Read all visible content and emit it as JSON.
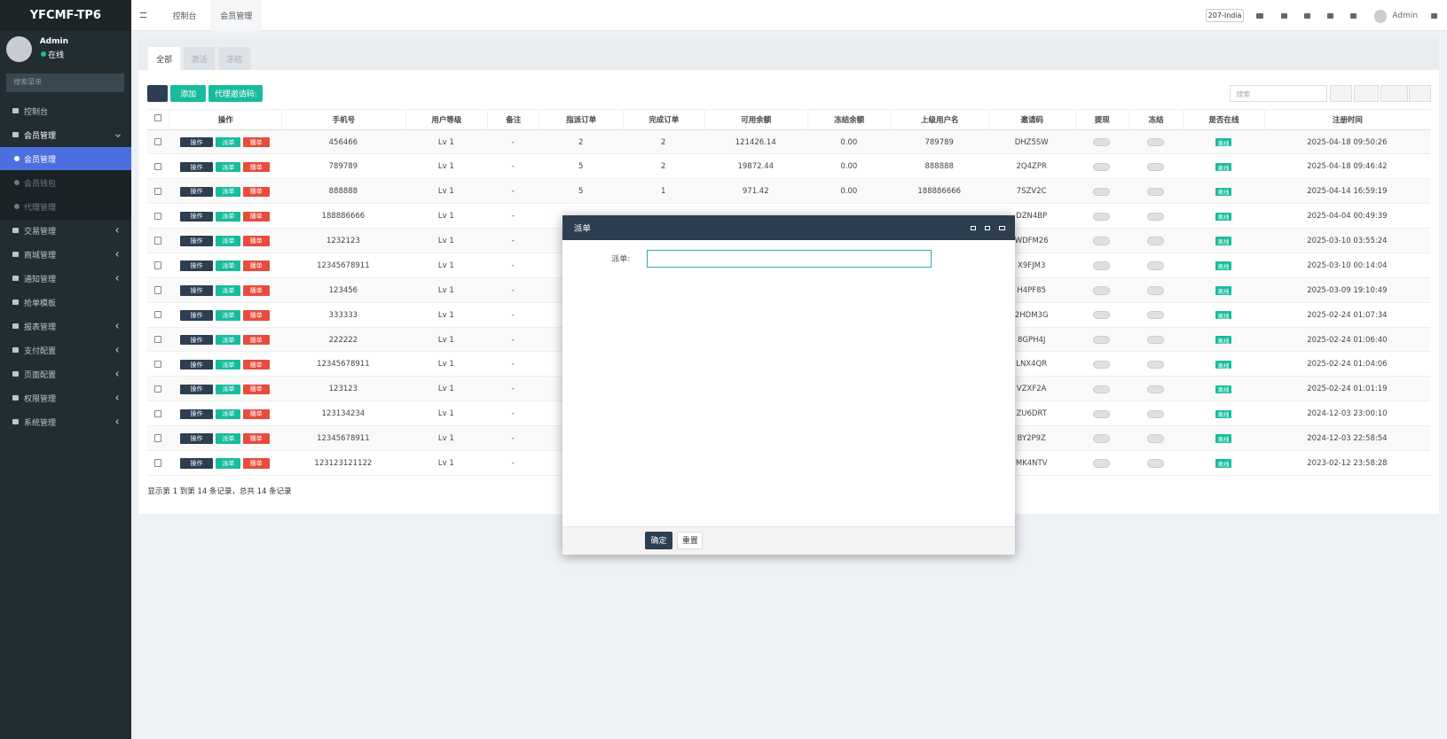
{
  "sidebar": {
    "logo": "YFCMF-TP6",
    "user": "Admin",
    "status": "在线",
    "search_placeholder": "搜索菜单",
    "menu": [
      {
        "label": "控制台"
      },
      {
        "label": "会员管理",
        "open": true,
        "children": [
          "会员管理",
          "会员钱包",
          "代理管理"
        ],
        "active_child": 0
      },
      {
        "label": "交易管理",
        "collapsible": true
      },
      {
        "label": "商城管理",
        "collapsible": true
      },
      {
        "label": "通知管理",
        "collapsible": true
      },
      {
        "label": "抢单模板"
      },
      {
        "label": "报表管理",
        "collapsible": true
      },
      {
        "label": "支付配置",
        "collapsible": true
      },
      {
        "label": "页面配置",
        "collapsible": true
      },
      {
        "label": "权限管理",
        "collapsible": true
      },
      {
        "label": "系统管理",
        "collapsible": true
      }
    ]
  },
  "topbar": {
    "tabs": [
      "控制台",
      "会员管理"
    ],
    "active_tab": 1,
    "lang": "207-India",
    "user": "Admin"
  },
  "panel": {
    "tabs": [
      "全部",
      "激活",
      "冻结"
    ],
    "add": "添加",
    "invite": "代理邀请码:",
    "search_placeholder": "搜索"
  },
  "table": {
    "headers": [
      "操作",
      "手机号",
      "用户等级",
      "备注",
      "指派订单",
      "完成订单",
      "可用余额",
      "冻结余额",
      "上级用户名",
      "邀请码",
      "提现",
      "冻结",
      "是否在线",
      "注册时间"
    ],
    "row_actions": [
      "操作",
      "派单",
      "播单"
    ],
    "rows": [
      [
        "456466",
        "Lv 1",
        "-",
        "2",
        "2",
        "121426.14",
        "0.00",
        "789789",
        "DHZ5SW",
        "离线",
        "2025-04-18 09:50:26"
      ],
      [
        "789789",
        "Lv 1",
        "-",
        "5",
        "2",
        "19872.44",
        "0.00",
        "888888",
        "2Q4ZPR",
        "离线",
        "2025-04-18 09:46:42"
      ],
      [
        "888888",
        "Lv 1",
        "-",
        "5",
        "1",
        "971.42",
        "0.00",
        "188886666",
        "7SZV2C",
        "离线",
        "2025-04-14 16:59:19"
      ],
      [
        "188886666",
        "Lv 1",
        "-",
        null,
        null,
        null,
        null,
        null,
        "DZN4BP",
        "离线",
        "2025-04-04 00:49:39"
      ],
      [
        "1232123",
        "Lv 1",
        "-",
        null,
        null,
        null,
        null,
        null,
        "WDFM26",
        "离线",
        "2025-03-10 03:55:24"
      ],
      [
        "12345678911",
        "Lv 1",
        "-",
        null,
        null,
        null,
        null,
        null,
        "X9FJM3",
        "离线",
        "2025-03-10 00:14:04"
      ],
      [
        "123456",
        "Lv 1",
        "-",
        null,
        null,
        null,
        null,
        null,
        "H4PF85",
        "离线",
        "2025-03-09 19:10:49"
      ],
      [
        "333333",
        "Lv 1",
        "-",
        null,
        null,
        null,
        null,
        null,
        "2HDM3G",
        "离线",
        "2025-02-24 01:07:34"
      ],
      [
        "222222",
        "Lv 1",
        "-",
        null,
        null,
        null,
        null,
        null,
        "8GPH4J",
        "离线",
        "2025-02-24 01:06:40"
      ],
      [
        "12345678911",
        "Lv 1",
        "-",
        null,
        null,
        null,
        null,
        null,
        "LNX4QR",
        "离线",
        "2025-02-24 01:04:06"
      ],
      [
        "123123",
        "Lv 1",
        "-",
        null,
        null,
        null,
        null,
        null,
        "VZXF2A",
        "离线",
        "2025-02-24 01:01:19"
      ],
      [
        "123134234",
        "Lv 1",
        "-",
        null,
        null,
        null,
        null,
        null,
        "ZU6DRT",
        "离线",
        "2024-12-03 23:00:10"
      ],
      [
        "12345678911",
        "Lv 1",
        "-",
        null,
        null,
        null,
        null,
        null,
        "BY2P9Z",
        "离线",
        "2024-12-03 22:58:54"
      ],
      [
        "123123121122",
        "Lv 1",
        "-",
        null,
        null,
        null,
        null,
        null,
        "MK4NTV",
        "离线",
        "2023-02-12 23:58:28"
      ]
    ]
  },
  "footer": "显示第 1 到第 14 条记录，总共 14 条记录",
  "modal": {
    "title": "派单",
    "field_label": "派单:",
    "confirm": "确定",
    "reset": "重置"
  }
}
